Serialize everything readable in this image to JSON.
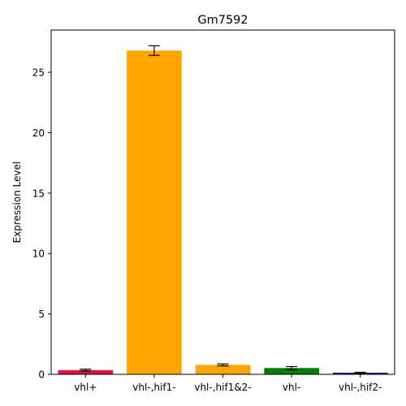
{
  "chart_data": {
    "type": "bar",
    "title": "Gm7592",
    "xlabel": "",
    "ylabel": "Expression Level",
    "categories": [
      "vhl+",
      "vhl-,hif1-",
      "vhl-,hif1&2-",
      "vhl-",
      "vhl-,hif2-"
    ],
    "values": [
      0.35,
      26.8,
      0.78,
      0.52,
      0.13
    ],
    "errors": [
      0.08,
      0.4,
      0.08,
      0.12,
      0.04
    ],
    "colors": [
      "#dc143c",
      "#ffa500",
      "#ffa500",
      "#008000",
      "#00008b"
    ],
    "ylim": [
      0,
      28.5
    ],
    "yticks": [
      0,
      5,
      10,
      15,
      20,
      25
    ],
    "grid": false
  }
}
